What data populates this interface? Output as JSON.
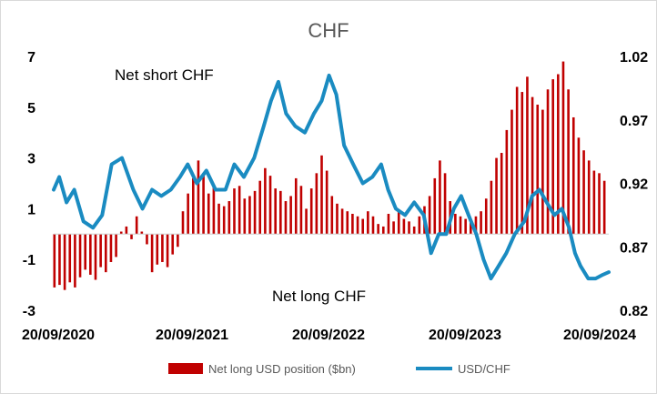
{
  "chart_data": {
    "type": "bar+line",
    "title": "CHF",
    "x_tick_labels": [
      "20/09/2020",
      "20/09/2021",
      "20/09/2022",
      "20/09/2023",
      "20/09/2024"
    ],
    "x_range": [
      "2020-09-20",
      "2024-11-10"
    ],
    "y_left": {
      "ticks": [
        7,
        5,
        3,
        1,
        -1,
        -3
      ],
      "range": [
        -3,
        7
      ]
    },
    "y_right": {
      "ticks": [
        "1.02",
        "0.97",
        "0.92",
        "0.87",
        "0.82"
      ],
      "range": [
        0.82,
        1.02
      ]
    },
    "annotations": [
      "Net short CHF",
      "Net long CHF"
    ],
    "legend_position": "bottom",
    "series": [
      {
        "name": "Net long USD position ($bn)",
        "type": "bar",
        "axis": "left",
        "color": "#c00000",
        "x": [
          "2020-09-22",
          "2020-10-06",
          "2020-10-20",
          "2020-11-03",
          "2020-11-17",
          "2020-12-01",
          "2020-12-15",
          "2020-12-29",
          "2021-01-12",
          "2021-01-26",
          "2021-02-09",
          "2021-02-23",
          "2021-03-09",
          "2021-03-23",
          "2021-04-06",
          "2021-04-20",
          "2021-05-04",
          "2021-05-18",
          "2021-06-01",
          "2021-06-15",
          "2021-06-29",
          "2021-07-13",
          "2021-07-27",
          "2021-08-10",
          "2021-08-24",
          "2021-09-07",
          "2021-09-21",
          "2021-10-05",
          "2021-10-19",
          "2021-11-02",
          "2021-11-16",
          "2021-11-30",
          "2021-12-14",
          "2021-12-28",
          "2022-01-11",
          "2022-01-25",
          "2022-02-08",
          "2022-02-22",
          "2022-03-08",
          "2022-03-22",
          "2022-04-05",
          "2022-04-19",
          "2022-05-03",
          "2022-05-17",
          "2022-05-31",
          "2022-06-14",
          "2022-06-28",
          "2022-07-12",
          "2022-07-26",
          "2022-08-09",
          "2022-08-23",
          "2022-09-06",
          "2022-09-20",
          "2022-10-04",
          "2022-10-18",
          "2022-11-01",
          "2022-11-15",
          "2022-11-29",
          "2022-12-13",
          "2022-12-27",
          "2023-01-10",
          "2023-01-24",
          "2023-02-07",
          "2023-02-21",
          "2023-03-07",
          "2023-03-21",
          "2023-04-04",
          "2023-04-18",
          "2023-05-02",
          "2023-05-16",
          "2023-05-30",
          "2023-06-13",
          "2023-06-27",
          "2023-07-11",
          "2023-07-25",
          "2023-08-08",
          "2023-08-22",
          "2023-09-05",
          "2023-09-19",
          "2023-10-03",
          "2023-10-17",
          "2023-10-31",
          "2023-11-14",
          "2023-11-28",
          "2023-12-12",
          "2023-12-26",
          "2024-01-09",
          "2024-01-23",
          "2024-02-06",
          "2024-02-20",
          "2024-03-05",
          "2024-03-19",
          "2024-04-02",
          "2024-04-16",
          "2024-04-30",
          "2024-05-14",
          "2024-05-28",
          "2024-06-11",
          "2024-06-25",
          "2024-07-09",
          "2024-07-23",
          "2024-08-06",
          "2024-08-20",
          "2024-09-03",
          "2024-09-17",
          "2024-10-01",
          "2024-10-15",
          "2024-10-29"
        ],
        "values": [
          -2.1,
          -2.0,
          -2.2,
          -1.9,
          -2.1,
          -1.7,
          -1.4,
          -1.6,
          -1.8,
          -1.3,
          -1.5,
          -1.1,
          -0.9,
          0.1,
          0.3,
          -0.2,
          0.7,
          0.1,
          -0.4,
          -1.5,
          -1.2,
          -1.1,
          -1.3,
          -0.8,
          -0.5,
          0.9,
          1.6,
          2.2,
          2.9,
          2.4,
          1.6,
          1.9,
          1.2,
          1.1,
          1.3,
          1.8,
          1.9,
          1.4,
          1.5,
          1.7,
          2.1,
          2.6,
          2.3,
          1.8,
          1.7,
          1.3,
          1.5,
          2.2,
          1.9,
          1.0,
          1.8,
          2.4,
          3.1,
          2.5,
          1.5,
          1.2,
          1.0,
          0.9,
          0.8,
          0.7,
          0.6,
          0.9,
          0.7,
          0.4,
          0.3,
          0.8,
          0.5,
          0.9,
          0.6,
          0.5,
          0.3,
          0.7,
          1.1,
          1.5,
          2.2,
          2.9,
          2.4,
          1.3,
          0.8,
          0.7,
          0.6,
          0.5,
          0.7,
          0.9,
          1.4,
          2.1,
          3.0,
          3.2,
          4.1,
          4.9,
          5.8,
          5.6,
          6.2,
          5.4,
          5.1,
          4.9,
          5.7,
          6.1,
          6.3,
          6.8,
          5.7,
          4.6,
          3.8,
          3.3,
          2.9,
          2.5,
          2.4,
          2.1
        ]
      },
      {
        "name": "USD/CHF",
        "type": "line",
        "axis": "right",
        "color": "#1a8bc1",
        "x": [
          "2020-09-20",
          "2020-10-05",
          "2020-10-25",
          "2020-11-15",
          "2020-12-10",
          "2021-01-05",
          "2021-01-30",
          "2021-02-25",
          "2021-03-25",
          "2021-04-25",
          "2021-05-20",
          "2021-06-15",
          "2021-07-10",
          "2021-08-05",
          "2021-08-30",
          "2021-09-20",
          "2021-10-15",
          "2021-11-10",
          "2021-12-05",
          "2022-01-01",
          "2022-01-25",
          "2022-02-20",
          "2022-03-20",
          "2022-04-15",
          "2022-05-05",
          "2022-05-25",
          "2022-06-15",
          "2022-07-10",
          "2022-08-05",
          "2022-08-30",
          "2022-09-20",
          "2022-10-10",
          "2022-10-30",
          "2022-11-20",
          "2022-12-15",
          "2023-01-10",
          "2023-02-05",
          "2023-03-01",
          "2023-03-20",
          "2023-04-10",
          "2023-05-05",
          "2023-05-30",
          "2023-06-25",
          "2023-07-15",
          "2023-08-05",
          "2023-08-25",
          "2023-09-15",
          "2023-10-05",
          "2023-10-25",
          "2023-11-15",
          "2023-12-05",
          "2023-12-25",
          "2024-01-15",
          "2024-02-05",
          "2024-02-28",
          "2024-03-25",
          "2024-04-15",
          "2024-05-05",
          "2024-05-25",
          "2024-06-15",
          "2024-07-05",
          "2024-07-25",
          "2024-08-10",
          "2024-08-25",
          "2024-09-15",
          "2024-10-05",
          "2024-10-25",
          "2024-11-10"
        ],
        "values": [
          0.915,
          0.925,
          0.905,
          0.915,
          0.89,
          0.885,
          0.895,
          0.935,
          0.94,
          0.915,
          0.9,
          0.915,
          0.91,
          0.915,
          0.925,
          0.935,
          0.92,
          0.93,
          0.915,
          0.915,
          0.935,
          0.925,
          0.94,
          0.965,
          0.985,
          1.0,
          0.975,
          0.965,
          0.96,
          0.975,
          0.985,
          1.005,
          0.99,
          0.95,
          0.935,
          0.92,
          0.925,
          0.935,
          0.915,
          0.9,
          0.895,
          0.905,
          0.895,
          0.865,
          0.88,
          0.88,
          0.9,
          0.91,
          0.895,
          0.88,
          0.86,
          0.845,
          0.855,
          0.865,
          0.88,
          0.89,
          0.91,
          0.915,
          0.905,
          0.895,
          0.9,
          0.885,
          0.865,
          0.855,
          0.845,
          0.845,
          0.848,
          0.85
        ]
      }
    ]
  }
}
